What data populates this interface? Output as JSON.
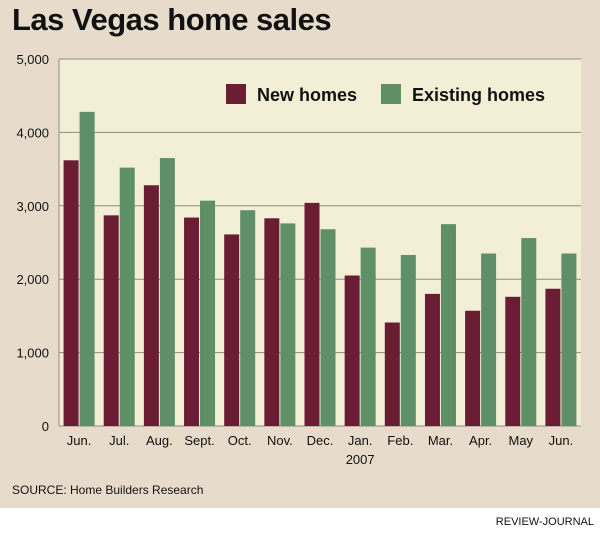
{
  "title": "Las Vegas home sales",
  "source": "SOURCE: Home Builders Research",
  "credit": "REVIEW-JOURNAL",
  "colors": {
    "new": "#6b1d33",
    "existing": "#5e8f67",
    "plot_bg": "#f3eed6",
    "panel_bg": "#e7dccb",
    "grid": "#8f8a80"
  },
  "chart_data": {
    "type": "bar",
    "title": "Las Vegas home sales",
    "xlabel": "",
    "ylabel": "",
    "ylim": [
      0,
      5000
    ],
    "yticks": [
      0,
      1000,
      2000,
      3000,
      4000,
      5000
    ],
    "ytick_labels": [
      "0",
      "1,000",
      "2,000",
      "3,000",
      "4,000",
      "5,000"
    ],
    "grid": true,
    "legend_position": "top-right",
    "categories": [
      "Jun.",
      "Jul.",
      "Aug.",
      "Sept.",
      "Oct.",
      "Nov.",
      "Dec.",
      "Jan.",
      "Feb.",
      "Mar.",
      "Apr.",
      "May",
      "Jun."
    ],
    "category_sublabels": [
      "",
      "",
      "",
      "",
      "",
      "",
      "",
      "2007",
      "",
      "",
      "",
      "",
      ""
    ],
    "series": [
      {
        "name": "New homes",
        "values": [
          3620,
          2870,
          3280,
          2840,
          2610,
          2830,
          3040,
          2050,
          1410,
          1800,
          1570,
          1760,
          1870
        ]
      },
      {
        "name": "Existing homes",
        "values": [
          4280,
          3520,
          3650,
          3070,
          2940,
          2760,
          2680,
          2430,
          2330,
          2750,
          2350,
          2560,
          2350
        ]
      }
    ]
  }
}
